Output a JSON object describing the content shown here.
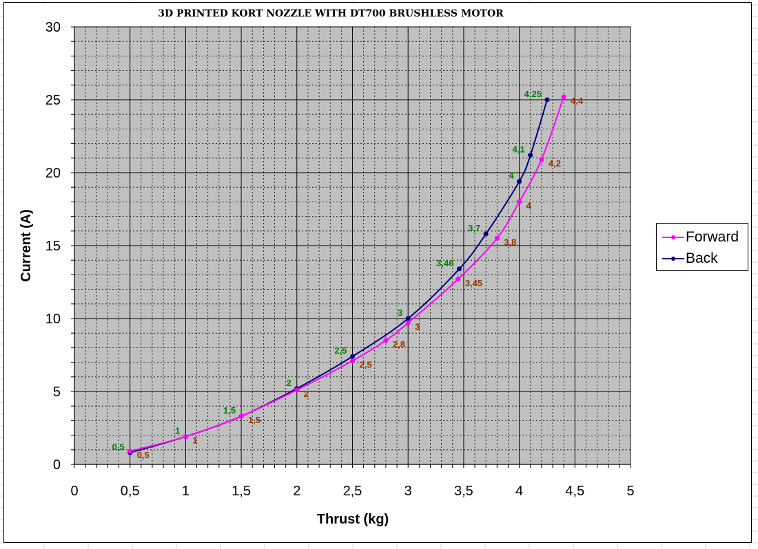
{
  "colors": {
    "plot_bg": "#c0c0c0",
    "forward": "#ff00ff",
    "back": "#000080",
    "forward_label": "#993300",
    "back_label": "#008000",
    "sheet_grid": "#d4d4d4"
  },
  "chart_data": {
    "type": "line",
    "title": "3D PRINTED KORT NOZZLE WITH DT700 BRUSHLESS MOTOR",
    "xlabel": "Thrust (kg)",
    "ylabel": "Current (A)",
    "xlim": [
      0,
      5
    ],
    "ylim": [
      0,
      30
    ],
    "x_ticks": [
      "0",
      "0,5",
      "1",
      "1,5",
      "2",
      "2,5",
      "3",
      "3,5",
      "4",
      "4,5",
      "5"
    ],
    "y_ticks": [
      "0",
      "5",
      "10",
      "15",
      "20",
      "25",
      "30"
    ],
    "grid": true,
    "legend_position": "right",
    "series": [
      {
        "name": "Forward",
        "color_key": "forward",
        "label_color_key": "forward_label",
        "points": [
          {
            "x": 0.5,
            "y": 0.9,
            "label": "0,5"
          },
          {
            "x": 1,
            "y": 1.9,
            "label": "1"
          },
          {
            "x": 1.5,
            "y": 3.3,
            "label": "1,5"
          },
          {
            "x": 2,
            "y": 5.1,
            "label": "2"
          },
          {
            "x": 2.5,
            "y": 7.1,
            "label": "2,5"
          },
          {
            "x": 2.8,
            "y": 8.5,
            "label": "2,8"
          },
          {
            "x": 3,
            "y": 9.7,
            "label": "3"
          },
          {
            "x": 3.45,
            "y": 12.7,
            "label": "3,45"
          },
          {
            "x": 3.8,
            "y": 15.5,
            "label": "3,8"
          },
          {
            "x": 4,
            "y": 18,
            "label": "4"
          },
          {
            "x": 4.2,
            "y": 20.9,
            "label": "4,2"
          },
          {
            "x": 4.4,
            "y": 25.2,
            "label": "4,4"
          }
        ]
      },
      {
        "name": "Back",
        "color_key": "back",
        "label_color_key": "back_label",
        "points": [
          {
            "x": 0.5,
            "y": 0.8,
            "label": "0,5"
          },
          {
            "x": 1,
            "y": 1.9,
            "label": "1"
          },
          {
            "x": 1.5,
            "y": 3.3,
            "label": "1,5"
          },
          {
            "x": 2,
            "y": 5.2,
            "label": "2"
          },
          {
            "x": 2.5,
            "y": 7.4,
            "label": "2,5"
          },
          {
            "x": 3,
            "y": 10,
            "label": "3"
          },
          {
            "x": 3.46,
            "y": 13.4,
            "label": "3,46"
          },
          {
            "x": 3.7,
            "y": 15.8,
            "label": "3,7"
          },
          {
            "x": 4,
            "y": 19.4,
            "label": "4"
          },
          {
            "x": 4.1,
            "y": 21.2,
            "label": "4,1"
          },
          {
            "x": 4.25,
            "y": 25,
            "label": "4,25"
          }
        ]
      }
    ]
  }
}
